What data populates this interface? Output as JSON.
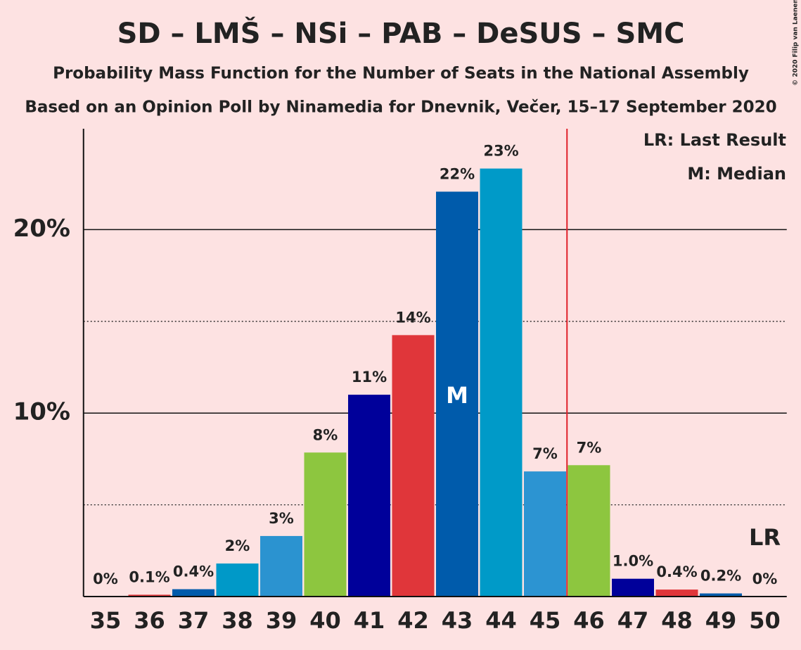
{
  "chart_data": {
    "type": "bar",
    "title": "SD – LMŠ – NSi – PAB – DeSUS – SMC",
    "subtitle": "Probability Mass Function for the Number of Seats in the National Assembly",
    "source_note": "Based on an Opinion Poll by Ninamedia for Dnevnik, Večer, 15–17 September 2020",
    "copyright": "© 2020 Filip van Laenen",
    "categories": [
      35,
      36,
      37,
      38,
      39,
      40,
      41,
      42,
      43,
      44,
      45,
      46,
      47,
      48,
      49,
      50
    ],
    "values": [
      0,
      0.1,
      0.4,
      1.8,
      3.3,
      7.85,
      11.0,
      14.25,
      22.07,
      23.33,
      6.82,
      7.16,
      0.97,
      0.38,
      0.17,
      0
    ],
    "value_labels": [
      "0%",
      "0.1%",
      "0.4%",
      "2%",
      "3%",
      "8%",
      "11%",
      "14%",
      "22%",
      "23%",
      "7%",
      "7%",
      "1.0%",
      "0.4%",
      "0.2%",
      "0%"
    ],
    "colors": [
      "#0099c8",
      "#e0363a",
      "#005bab",
      "#0099c8",
      "#2b93d0",
      "#8dc63f",
      "#00009a",
      "#e0363a",
      "#005bab",
      "#009ac8",
      "#2c94d2",
      "#8dc63f",
      "#00009a",
      "#e0363a",
      "#005bab",
      "#0099c8"
    ],
    "ylim": [
      0,
      25.5
    ],
    "yticks": [
      {
        "value": 10,
        "label": "10%"
      },
      {
        "value": 20,
        "label": "20%"
      }
    ],
    "minor_yticks": [
      5,
      15
    ],
    "majority_line": 45.5,
    "median": 43,
    "median_label": "M",
    "last_result": 50,
    "last_result_label": "LR",
    "legend": [
      "LR: Last Result",
      "M: Median"
    ]
  }
}
